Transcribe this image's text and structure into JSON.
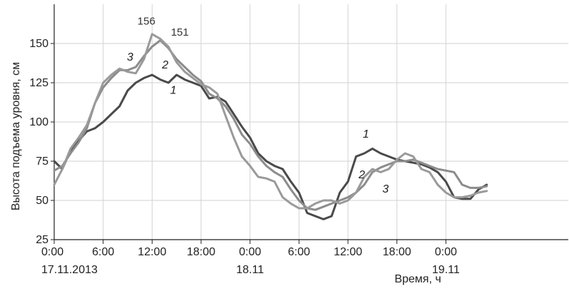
{
  "chart_data": {
    "type": "line",
    "xlabel": "Время, ч",
    "ylabel": "Высота подъема уровня, см",
    "ylim": [
      25,
      175
    ],
    "xlim": [
      0,
      63
    ],
    "grid": true,
    "x_ticks": [
      {
        "x": 0,
        "label": "0:00"
      },
      {
        "x": 6,
        "label": "6:00"
      },
      {
        "x": 12,
        "label": "12:00"
      },
      {
        "x": 18,
        "label": "18:00"
      },
      {
        "x": 24,
        "label": "0:00"
      },
      {
        "x": 30,
        "label": "6:00"
      },
      {
        "x": 36,
        "label": "12:00"
      },
      {
        "x": 42,
        "label": "18:00"
      },
      {
        "x": 48,
        "label": "0:00"
      }
    ],
    "date_labels": [
      {
        "x": 0,
        "label": "17.11.2013"
      },
      {
        "x": 24,
        "label": "18.11"
      },
      {
        "x": 48,
        "label": "19.11"
      }
    ],
    "y_ticks": [
      25,
      50,
      75,
      100,
      125,
      150
    ],
    "series": [
      {
        "name": "1",
        "color": "#4a4a4a",
        "x": [
          0,
          1,
          2,
          3,
          4,
          5,
          6,
          7,
          8,
          9,
          10,
          11,
          12,
          13,
          14,
          15,
          16,
          17,
          18,
          19,
          20,
          21,
          22,
          23,
          24,
          25,
          26,
          27,
          28,
          29,
          30,
          31,
          32,
          33,
          34,
          35,
          36,
          37,
          38,
          39,
          40,
          41,
          42,
          43,
          44,
          45,
          46,
          47,
          48,
          49,
          50,
          51,
          52,
          53
        ],
        "y": [
          75,
          70,
          82,
          88,
          94,
          96,
          100,
          105,
          110,
          120,
          125,
          128,
          130,
          127,
          125,
          130,
          127,
          125,
          123,
          115,
          116,
          113,
          105,
          97,
          90,
          80,
          75,
          72,
          70,
          62,
          55,
          42,
          40,
          38,
          40,
          55,
          62,
          78,
          80,
          83,
          80,
          78,
          76,
          75,
          74,
          73,
          71,
          68,
          62,
          52,
          51,
          51,
          57,
          60
        ]
      },
      {
        "name": "2",
        "color": "#8c8c8c",
        "x": [
          0,
          1,
          2,
          3,
          4,
          5,
          6,
          7,
          8,
          9,
          10,
          11,
          12,
          13,
          14,
          15,
          16,
          17,
          18,
          19,
          20,
          21,
          22,
          23,
          24,
          25,
          26,
          27,
          28,
          29,
          30,
          31,
          32,
          33,
          34,
          35,
          36,
          37,
          38,
          39,
          40,
          41,
          42,
          43,
          44,
          45,
          46,
          47,
          48,
          49,
          50,
          51,
          52,
          53
        ],
        "y": [
          69,
          72,
          80,
          87,
          96,
          112,
          122,
          128,
          133,
          133,
          135,
          142,
          148,
          152,
          147,
          140,
          135,
          130,
          126,
          118,
          115,
          110,
          102,
          92,
          86,
          78,
          72,
          68,
          65,
          57,
          50,
          45,
          44,
          46,
          48,
          50,
          52,
          55,
          60,
          68,
          71,
          73,
          75,
          75,
          76,
          74,
          72,
          70,
          69,
          68,
          60,
          58,
          58,
          59
        ]
      },
      {
        "name": "3",
        "color": "#9a9a9a",
        "x": [
          0,
          1,
          2,
          3,
          4,
          5,
          6,
          7,
          8,
          9,
          10,
          11,
          12,
          13,
          14,
          15,
          16,
          17,
          18,
          19,
          20,
          21,
          22,
          23,
          24,
          25,
          26,
          27,
          28,
          29,
          30,
          31,
          32,
          33,
          34,
          35,
          36,
          37,
          38,
          39,
          40,
          41,
          42,
          43,
          44,
          45,
          46,
          47,
          48,
          49,
          50,
          51,
          52,
          53
        ],
        "y": [
          60,
          70,
          83,
          90,
          98,
          112,
          125,
          130,
          134,
          132,
          131,
          140,
          156,
          153,
          148,
          138,
          132,
          128,
          124,
          122,
          118,
          104,
          90,
          78,
          72,
          65,
          64,
          62,
          52,
          48,
          45,
          45,
          48,
          50,
          50,
          48,
          50,
          55,
          65,
          70,
          68,
          70,
          76,
          80,
          78,
          70,
          68,
          60,
          55,
          52,
          52,
          53,
          55,
          56
        ]
      }
    ],
    "annotations": [
      {
        "text": "156",
        "x": 11.3,
        "y": 162
      },
      {
        "text": "151",
        "x": 15.4,
        "y": 155
      },
      {
        "text": "3",
        "x": 9.3,
        "y": 139
      },
      {
        "text": "2",
        "x": 13.6,
        "y": 134
      },
      {
        "text": "1",
        "x": 14.6,
        "y": 118
      },
      {
        "text": "1",
        "x": 38.2,
        "y": 90
      },
      {
        "text": "2",
        "x": 37.7,
        "y": 64
      },
      {
        "text": "3",
        "x": 40.6,
        "y": 55
      }
    ]
  }
}
